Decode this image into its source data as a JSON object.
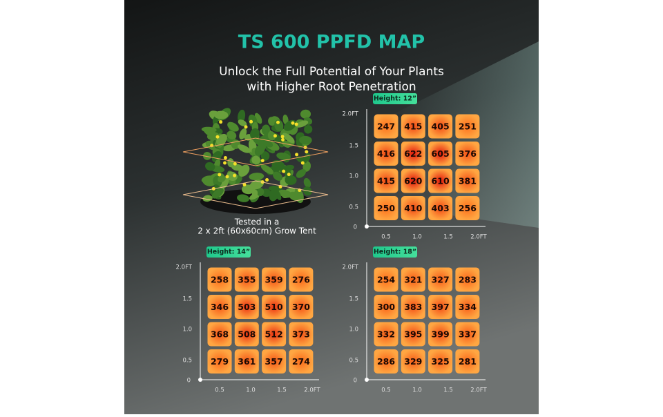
{
  "header": {
    "title": "TS 600 PPFD MAP",
    "subtitle_lines": [
      "Unlock the Full Potential of Your Plants",
      "with Higher Root Penetration"
    ]
  },
  "caption_lines": [
    "Tested in a",
    "2 x 2ft (60x60cm) Grow Tent"
  ],
  "maps": [
    {
      "badge": "Height: 12”",
      "y_labels": [
        "2.0FT",
        "1.5",
        "1.0",
        "0.5"
      ],
      "origin": "0",
      "x_labels": [
        "0.5",
        "1.0",
        "1.5",
        "2.0FT"
      ],
      "rows": [
        [
          247,
          415,
          405,
          251
        ],
        [
          416,
          622,
          605,
          376
        ],
        [
          415,
          620,
          610,
          381
        ],
        [
          250,
          410,
          403,
          256
        ]
      ]
    },
    {
      "badge": "Height: 14”",
      "y_labels": [
        "2.0FT",
        "1.5",
        "1.0",
        "0.5"
      ],
      "origin": "0",
      "x_labels": [
        "0.5",
        "1.0",
        "1.5",
        "2.0FT"
      ],
      "rows": [
        [
          258,
          355,
          359,
          276
        ],
        [
          346,
          503,
          510,
          370
        ],
        [
          368,
          508,
          512,
          373
        ],
        [
          279,
          361,
          357,
          274
        ]
      ]
    },
    {
      "badge": "Height: 18”",
      "y_labels": [
        "2.0FT",
        "1.5",
        "1.0",
        "0.5"
      ],
      "origin": "0",
      "x_labels": [
        "0.5",
        "1.0",
        "1.5",
        "2.0FT"
      ],
      "rows": [
        [
          254,
          321,
          327,
          283
        ],
        [
          300,
          383,
          397,
          334
        ],
        [
          332,
          395,
          399,
          337
        ],
        [
          286,
          329,
          325,
          281
        ]
      ]
    }
  ]
}
